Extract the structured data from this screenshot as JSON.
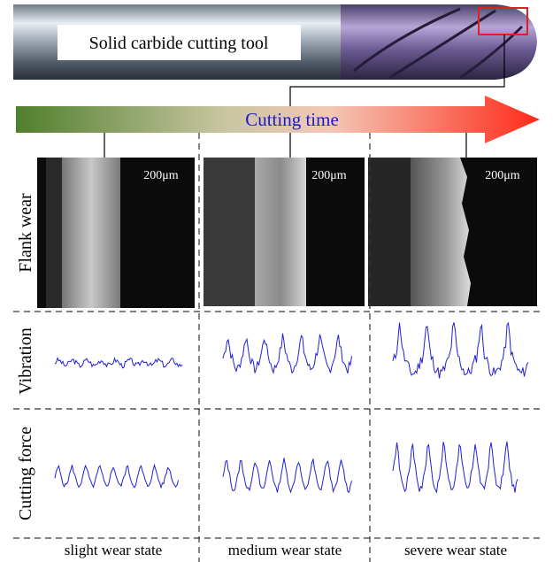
{
  "tool": {
    "label": "Solid carbide cutting tool"
  },
  "arrow": {
    "label": "Cutting time"
  },
  "rows": [
    "Flank wear",
    "Vibration",
    "Cutting force"
  ],
  "columns": [
    "slight wear state",
    "medium wear state",
    "severe wear state"
  ],
  "scale_bars": [
    "200μm",
    "200μm",
    "200μm"
  ]
}
